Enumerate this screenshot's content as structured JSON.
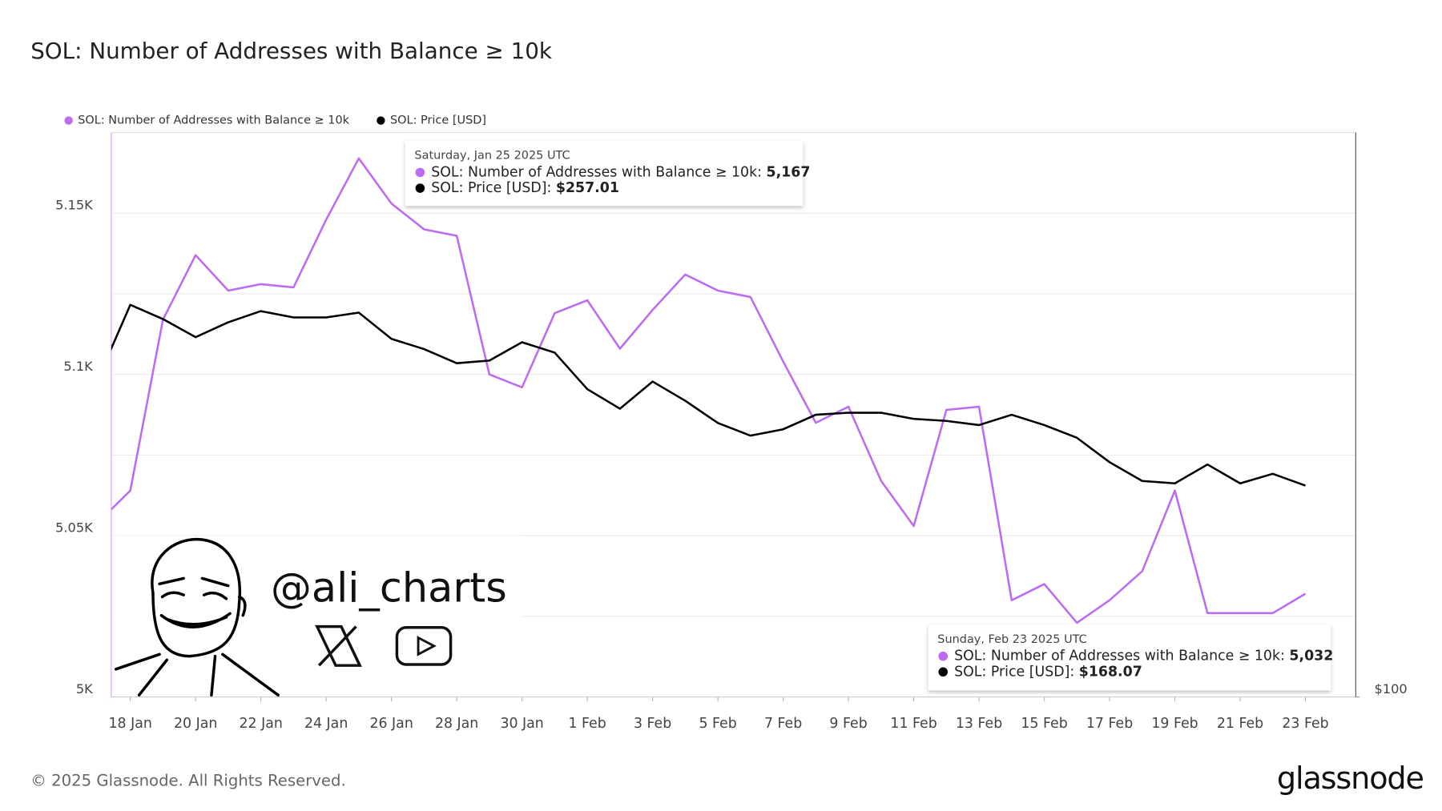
{
  "chart_data": {
    "type": "line",
    "title": "SOL: Number of Addresses with Balance ≥ 10k",
    "x": [
      "2025-01-17",
      "2025-01-18",
      "2025-01-19",
      "2025-01-20",
      "2025-01-21",
      "2025-01-22",
      "2025-01-23",
      "2025-01-24",
      "2025-01-25",
      "2025-01-26",
      "2025-01-27",
      "2025-01-28",
      "2025-01-29",
      "2025-01-30",
      "2025-01-31",
      "2025-02-01",
      "2025-02-02",
      "2025-02-03",
      "2025-02-04",
      "2025-02-05",
      "2025-02-06",
      "2025-02-07",
      "2025-02-08",
      "2025-02-09",
      "2025-02-10",
      "2025-02-11",
      "2025-02-12",
      "2025-02-13",
      "2025-02-14",
      "2025-02-15",
      "2025-02-16",
      "2025-02-17",
      "2025-02-18",
      "2025-02-19",
      "2025-02-20",
      "2025-02-21",
      "2025-02-22",
      "2025-02-23"
    ],
    "series": [
      {
        "name": "SOL: Number of Addresses with Balance ≥ 10k",
        "color": "#bb6cf2",
        "values": [
          5054,
          5064,
          5117,
          5137,
          5126,
          5128,
          5127,
          5148,
          5167,
          5153,
          5145,
          5143,
          5100,
          5096,
          5119,
          5123,
          5108,
          5120,
          5131,
          5126,
          5124,
          5104,
          5085,
          5090,
          5067,
          5053,
          5089,
          5090,
          5030,
          5035,
          5023,
          5030,
          5039,
          5064,
          5026,
          5026,
          5026,
          5032
        ]
      },
      {
        "name": "SOL: Price [USD]",
        "color": "#000000",
        "axis": "y2",
        "values": [
          218,
          262,
          253,
          242,
          251,
          258,
          254,
          254,
          257.01,
          241,
          235,
          227,
          228.5,
          239,
          233,
          213,
          203,
          217,
          207,
          196,
          190,
          193,
          200,
          201,
          201,
          198,
          197,
          195,
          200,
          195,
          189,
          178,
          170,
          169,
          177,
          169,
          173,
          168.07
        ]
      }
    ],
    "xlim": [
      "2025-01-17T10:00:00Z",
      "2025-02-24T13:00:00Z"
    ],
    "xticks": [
      {
        "value": "2025-01-18",
        "label": "18 Jan"
      },
      {
        "value": "2025-01-20",
        "label": "20 Jan"
      },
      {
        "value": "2025-01-22",
        "label": "22 Jan"
      },
      {
        "value": "2025-01-24",
        "label": "24 Jan"
      },
      {
        "value": "2025-01-26",
        "label": "26 Jan"
      },
      {
        "value": "2025-01-28",
        "label": "28 Jan"
      },
      {
        "value": "2025-01-30",
        "label": "30 Jan"
      },
      {
        "value": "2025-02-01",
        "label": "1 Feb"
      },
      {
        "value": "2025-02-03",
        "label": "3 Feb"
      },
      {
        "value": "2025-02-05",
        "label": "5 Feb"
      },
      {
        "value": "2025-02-07",
        "label": "7 Feb"
      },
      {
        "value": "2025-02-09",
        "label": "9 Feb"
      },
      {
        "value": "2025-02-11",
        "label": "11 Feb"
      },
      {
        "value": "2025-02-13",
        "label": "13 Feb"
      },
      {
        "value": "2025-02-15",
        "label": "15 Feb"
      },
      {
        "value": "2025-02-17",
        "label": "17 Feb"
      },
      {
        "value": "2025-02-19",
        "label": "19 Feb"
      },
      {
        "value": "2025-02-21",
        "label": "21 Feb"
      },
      {
        "value": "2025-02-23",
        "label": "23 Feb"
      }
    ],
    "ylim": [
      5000,
      5175
    ],
    "yticks": [
      {
        "value": 5000,
        "label": "5K"
      },
      {
        "value": 5025,
        "label": null
      },
      {
        "value": 5050,
        "label": "5.05K"
      },
      {
        "value": 5075,
        "label": null
      },
      {
        "value": 5100,
        "label": "5.1K"
      },
      {
        "value": 5125,
        "label": null
      },
      {
        "value": 5150,
        "label": "5.15K"
      }
    ],
    "y2lim": [
      100,
      400
    ],
    "y2ticks": [
      {
        "value": 100,
        "label": "$100"
      }
    ],
    "y2log": true,
    "grid": true,
    "legend": "top-left",
    "tooltips": [
      {
        "date": "Saturday, Jan 25 2025 UTC",
        "labels": [
          "5,167",
          "$257.01"
        ]
      },
      {
        "date": "Sunday, Feb 23 2025 UTC",
        "labels": [
          "5,032",
          "$168.07"
        ]
      }
    ],
    "watermark": "@ali_charts",
    "footer": "© 2025 Glassnode. All Rights Reserved.",
    "brand": "glassnode"
  }
}
